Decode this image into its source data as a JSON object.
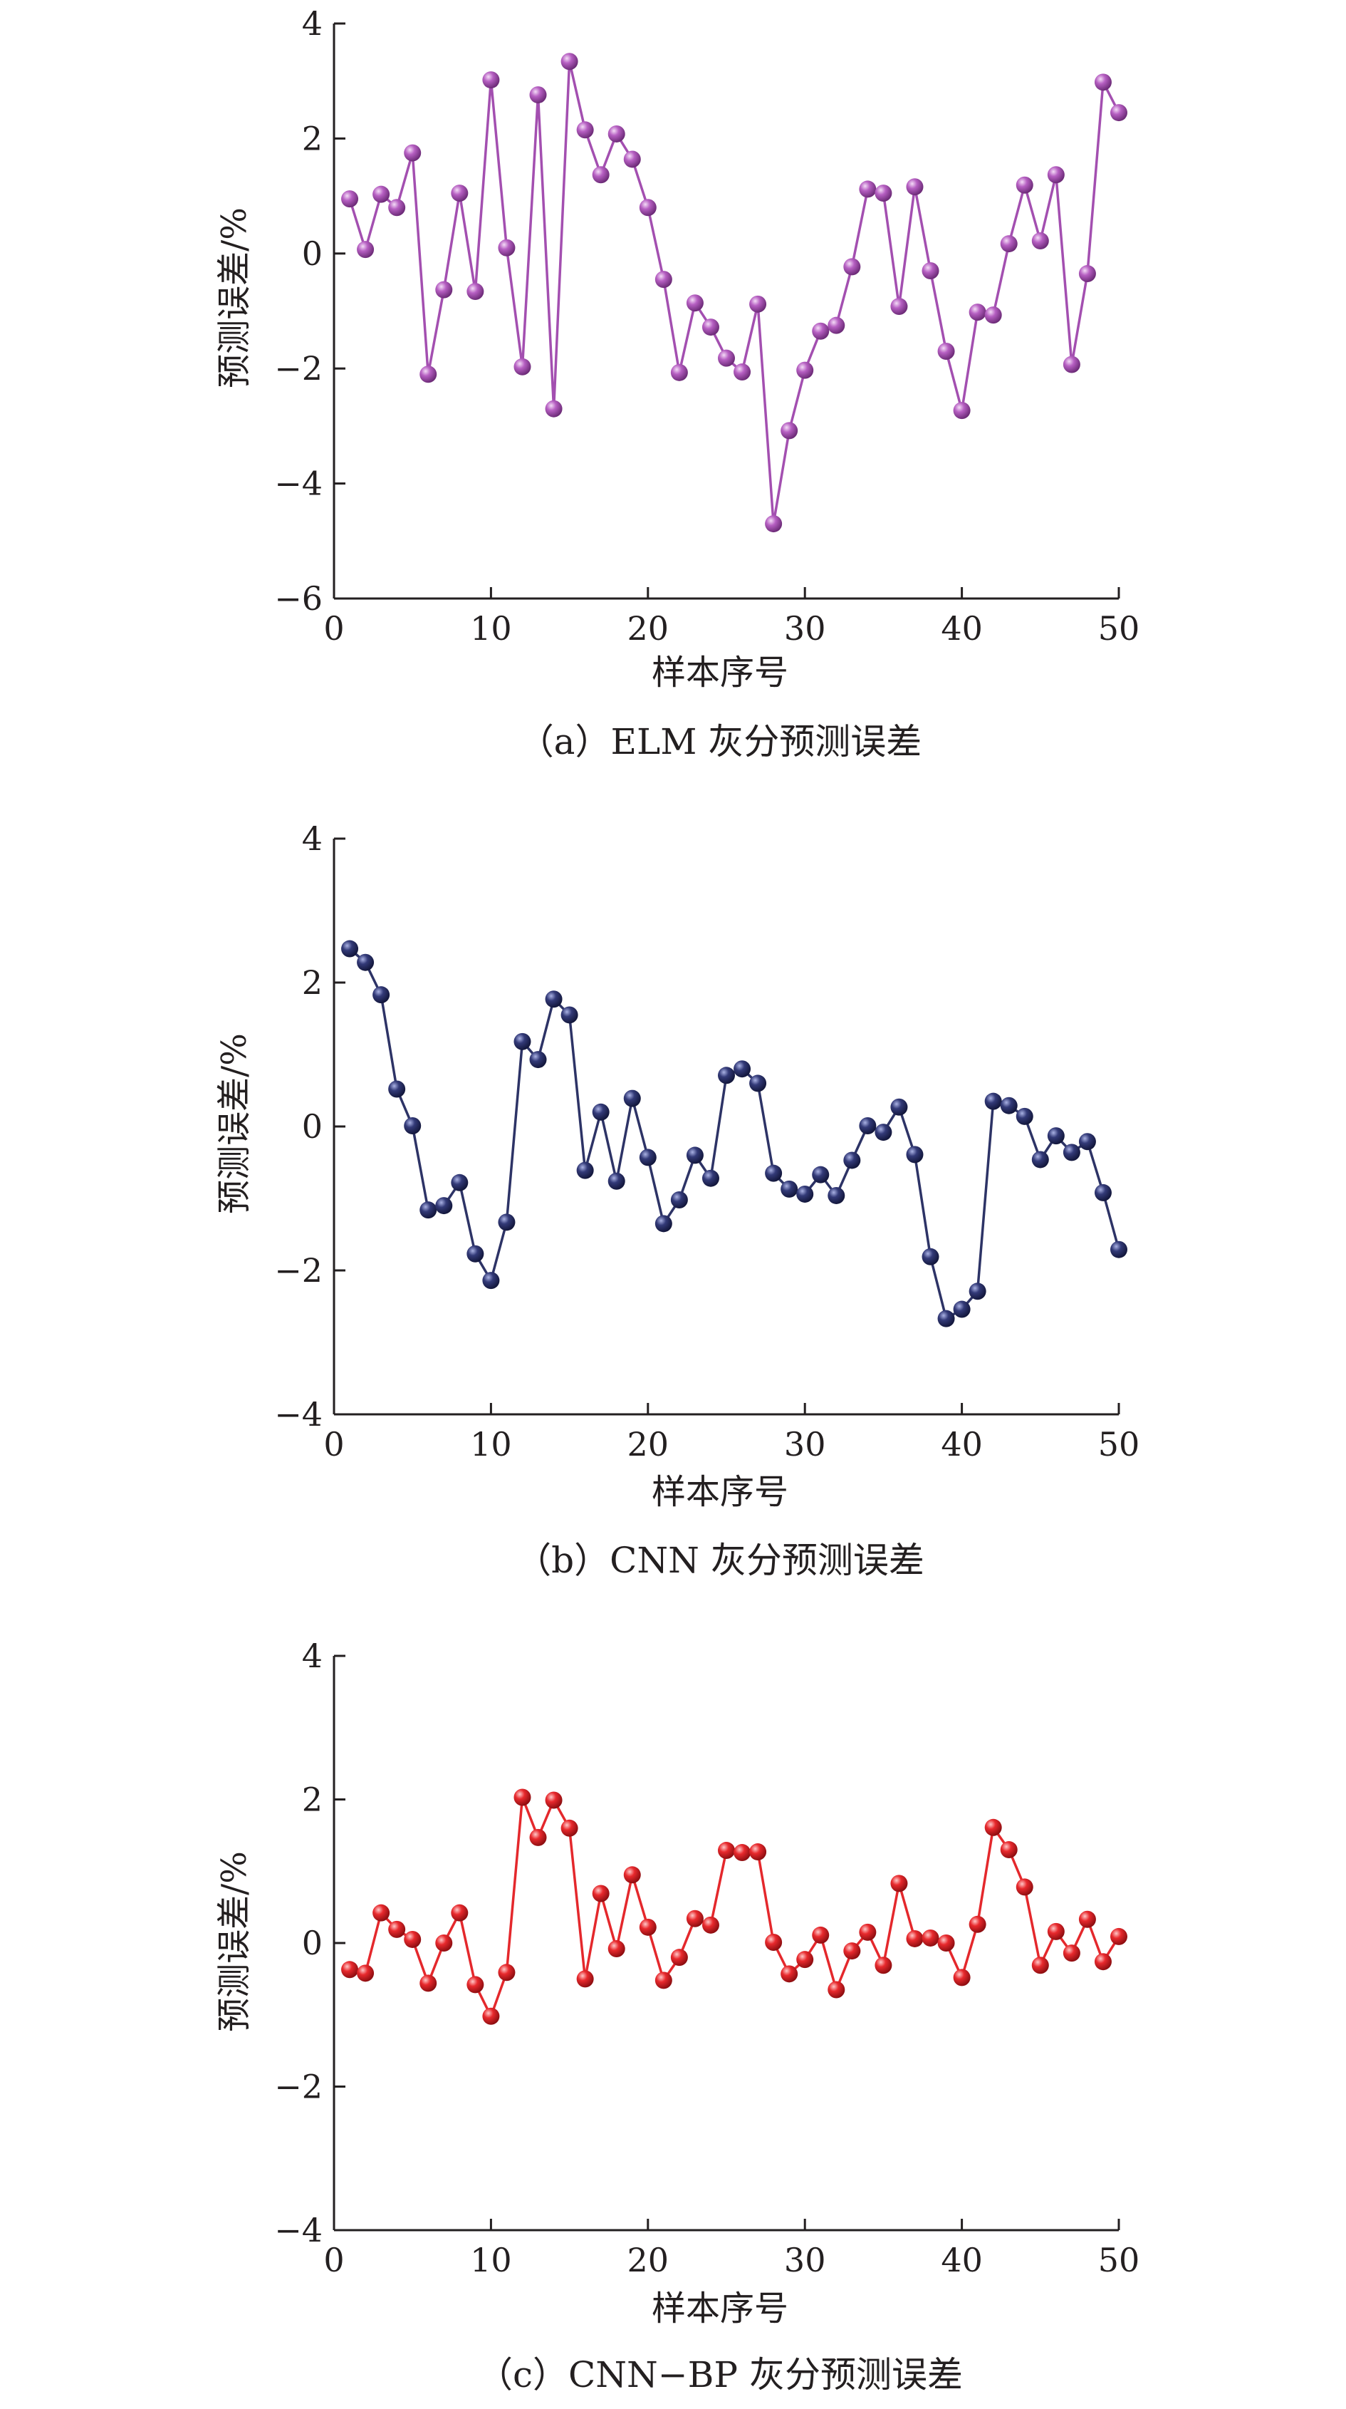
{
  "chart_data": [
    {
      "type": "line",
      "caption": "（a）ELM 灰分预测误差",
      "xlabel": "样本序号",
      "ylabel": "预测误差/%",
      "xlim": [
        0,
        50
      ],
      "ylim": [
        -6,
        4
      ],
      "xticks": [
        0,
        10,
        20,
        30,
        40,
        50
      ],
      "yticks": [
        4,
        2,
        0,
        -2,
        -4,
        -6
      ],
      "ytick_labels": [
        "4",
        "2",
        "0",
        "−2",
        "−4",
        "−6"
      ],
      "color": "#a34fb0",
      "grid": false,
      "x": [
        1,
        2,
        3,
        4,
        5,
        6,
        7,
        8,
        9,
        10,
        11,
        12,
        13,
        14,
        15,
        16,
        17,
        18,
        19,
        20,
        21,
        22,
        23,
        24,
        25,
        26,
        27,
        28,
        29,
        30,
        31,
        32,
        33,
        34,
        35,
        36,
        37,
        38,
        39,
        40,
        41,
        42,
        43,
        44,
        45,
        46,
        47,
        48,
        49,
        50
      ],
      "values": [
        0.95,
        0.07,
        1.03,
        0.8,
        1.75,
        -2.1,
        -0.63,
        1.05,
        -0.66,
        3.02,
        0.1,
        -1.97,
        2.76,
        -2.7,
        3.34,
        2.15,
        1.37,
        2.08,
        1.64,
        0.8,
        -0.45,
        -2.07,
        -0.86,
        -1.28,
        -1.82,
        -2.06,
        -0.88,
        -4.7,
        -3.08,
        -2.03,
        -1.35,
        -1.25,
        -0.23,
        1.12,
        1.05,
        -0.92,
        1.16,
        -0.3,
        -1.7,
        -2.73,
        -1.02,
        -1.07,
        0.17,
        1.19,
        0.22,
        1.37,
        -1.93,
        -0.35,
        2.98,
        2.45
      ]
    },
    {
      "type": "line",
      "caption": "（b）CNN 灰分预测误差",
      "xlabel": "样本序号",
      "ylabel": "预测误差/%",
      "xlim": [
        0,
        50
      ],
      "ylim": [
        -4,
        4
      ],
      "xticks": [
        0,
        10,
        20,
        30,
        40,
        50
      ],
      "yticks": [
        4,
        2,
        0,
        -2,
        -4
      ],
      "ytick_labels": [
        "4",
        "2",
        "0",
        "−2",
        "−4"
      ],
      "color": "#2d3366",
      "grid": false,
      "x": [
        1,
        2,
        3,
        4,
        5,
        6,
        7,
        8,
        9,
        10,
        11,
        12,
        13,
        14,
        15,
        16,
        17,
        18,
        19,
        20,
        21,
        22,
        23,
        24,
        25,
        26,
        27,
        28,
        29,
        30,
        31,
        32,
        33,
        34,
        35,
        36,
        37,
        38,
        39,
        40,
        41,
        42,
        43,
        44,
        45,
        46,
        47,
        48,
        49,
        50
      ],
      "values": [
        2.47,
        2.28,
        1.83,
        0.52,
        0.01,
        -1.16,
        -1.1,
        -0.78,
        -1.77,
        -2.14,
        -1.33,
        1.18,
        0.93,
        1.77,
        1.55,
        -0.61,
        0.2,
        -0.76,
        0.39,
        -0.43,
        -1.35,
        -1.02,
        -0.4,
        -0.72,
        0.71,
        0.8,
        0.6,
        -0.65,
        -0.87,
        -0.94,
        -0.67,
        -0.96,
        -0.47,
        0.01,
        -0.08,
        0.27,
        -0.39,
        -1.81,
        -2.67,
        -2.54,
        -2.29,
        0.35,
        0.29,
        0.14,
        -0.46,
        -0.13,
        -0.36,
        -0.21,
        -0.92,
        -1.71
      ]
    },
    {
      "type": "line",
      "caption": "（c）CNN−BP 灰分预测误差",
      "xlabel": "样本序号",
      "ylabel": "预测误差/%",
      "xlim": [
        0,
        50
      ],
      "ylim": [
        -4,
        4
      ],
      "xticks": [
        0,
        10,
        20,
        30,
        40,
        50
      ],
      "yticks": [
        4,
        2,
        0,
        -2,
        -4
      ],
      "ytick_labels": [
        "4",
        "2",
        "0",
        "−2",
        "−4"
      ],
      "color": "#e4282c",
      "grid": false,
      "x": [
        1,
        2,
        3,
        4,
        5,
        6,
        7,
        8,
        9,
        10,
        11,
        12,
        13,
        14,
        15,
        16,
        17,
        18,
        19,
        20,
        21,
        22,
        23,
        24,
        25,
        26,
        27,
        28,
        29,
        30,
        31,
        32,
        33,
        34,
        35,
        36,
        37,
        38,
        39,
        40,
        41,
        42,
        43,
        44,
        45,
        46,
        47,
        48,
        49,
        50
      ],
      "values": [
        -0.37,
        -0.42,
        0.42,
        0.19,
        0.05,
        -0.56,
        0.0,
        0.42,
        -0.58,
        -1.02,
        -0.41,
        2.03,
        1.47,
        1.99,
        1.6,
        -0.5,
        0.69,
        -0.08,
        0.95,
        0.22,
        -0.52,
        -0.2,
        0.34,
        0.25,
        1.29,
        1.26,
        1.27,
        0.01,
        -0.43,
        -0.23,
        0.11,
        -0.65,
        -0.11,
        0.15,
        -0.31,
        0.83,
        0.06,
        0.07,
        0.0,
        -0.48,
        0.26,
        1.61,
        1.3,
        0.78,
        -0.31,
        0.16,
        -0.14,
        0.33,
        -0.26,
        0.09
      ]
    }
  ]
}
